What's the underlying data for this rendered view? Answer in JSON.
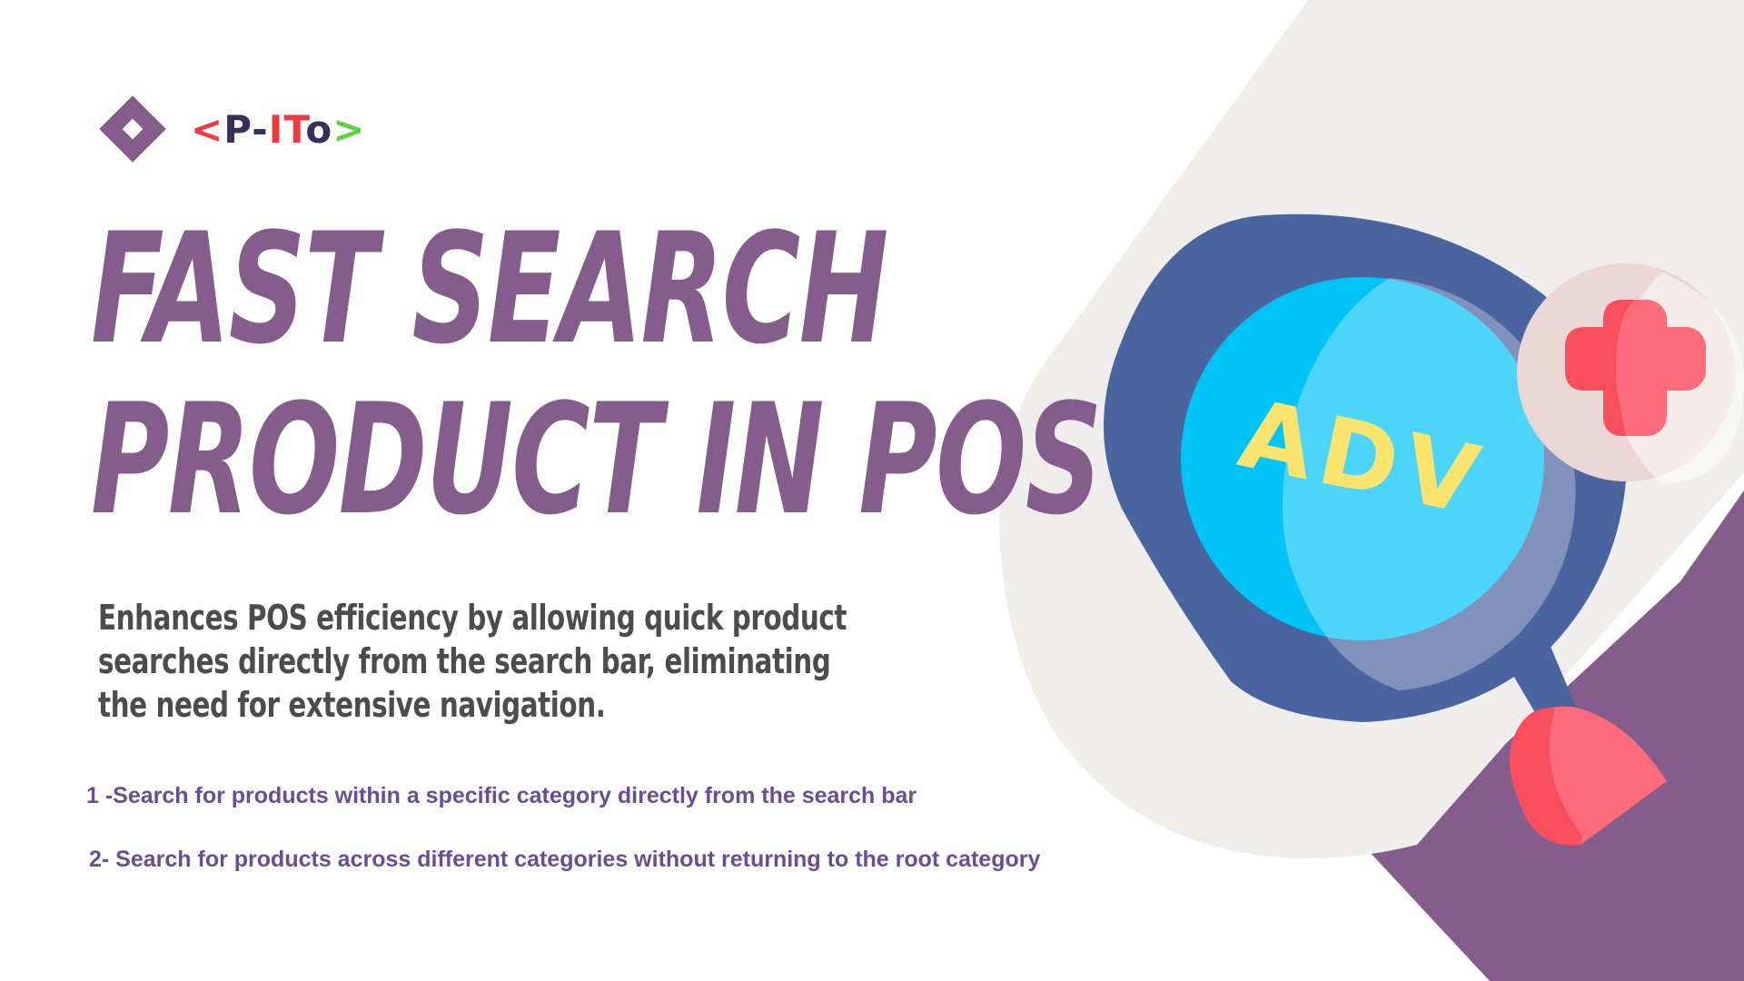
{
  "logo": {
    "icon": "diamond-icon",
    "text_lt": "<",
    "text_p": "P",
    "text_dash": "-",
    "text_it": "IT",
    "text_o": "o",
    "text_gt": ">"
  },
  "title": {
    "line1": "FAST SEARCH",
    "line2": "PRODUCT IN POS"
  },
  "description": "Enhances POS efficiency by allowing quick product searches directly from the search bar, eliminating the need for extensive navigation.",
  "features": [
    "1 -Search for products within a specific category directly from the search bar",
    "2- Search for products across different categories without returning to the root category"
  ],
  "illustration": {
    "icon": "magnifier-icon",
    "lens_text": "ADV",
    "badge_icon": "plus-icon"
  },
  "colors": {
    "brand_purple": "#855d8d",
    "feature_text": "#6a4d96",
    "body_text": "#4c4c4c",
    "lens_yellow": "#fbe46e",
    "badge_red": "#f84e5e"
  }
}
